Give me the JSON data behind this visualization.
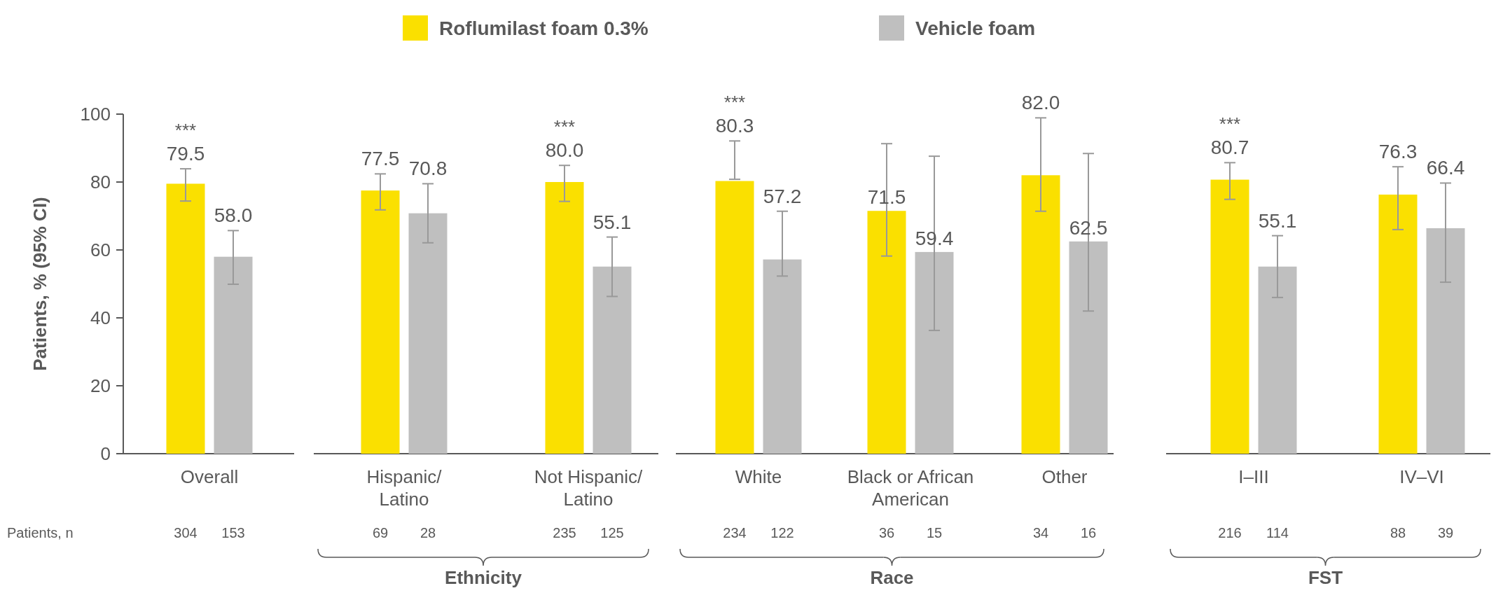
{
  "chart_data": {
    "type": "bar",
    "ylabel": "Patients, % (95% CI)",
    "categories": [
      "Overall",
      "Hispanic/\nLatino",
      "Not Hispanic/\nLatino",
      "White",
      "Black or African\nAmerican",
      "Other",
      "I–III",
      "IV–VI"
    ],
    "series": [
      {
        "name": "Roflumilast foam 0.3%",
        "color": "#fae000",
        "values": [
          79.5,
          77.5,
          80.0,
          80.3,
          71.5,
          82.0,
          80.7,
          76.3
        ],
        "value_labels": [
          "79.5",
          "77.5",
          "80.0",
          "80.3",
          "71.5",
          "82.0",
          "80.7",
          "76.3"
        ],
        "errors": [
          [
            74.4,
            83.9
          ],
          [
            71.8,
            82.4
          ],
          [
            74.3,
            84.9
          ],
          [
            80.8,
            92.1
          ],
          [
            58.2,
            91.3
          ],
          [
            71.4,
            98.9
          ],
          [
            74.9,
            85.7
          ],
          [
            66.0,
            84.5
          ]
        ]
      },
      {
        "name": "Vehicle foam",
        "color": "#bfbfbf",
        "values": [
          58.0,
          70.8,
          55.1,
          57.2,
          59.4,
          62.5,
          55.1,
          66.4
        ],
        "value_labels": [
          "58.0",
          "70.8",
          "55.1",
          "57.2",
          "59.4",
          "62.5",
          "55.1",
          "66.4"
        ],
        "errors": [
          [
            49.9,
            65.7
          ],
          [
            62.1,
            79.5
          ],
          [
            46.3,
            63.8
          ],
          [
            52.3,
            71.4
          ],
          [
            36.3,
            87.6
          ],
          [
            42.0,
            88.4
          ],
          [
            46.0,
            64.2
          ],
          [
            50.5,
            79.7
          ]
        ]
      }
    ],
    "ylim": [
      0,
      100
    ],
    "yticks": [
      0,
      20,
      40,
      60,
      80,
      100
    ],
    "legend": "top",
    "annotations": [
      "***",
      "***",
      "***",
      "***",
      "Patients, n",
      "304",
      "153",
      "69",
      "28",
      "235",
      "125",
      "234",
      "122",
      "36",
      "15",
      "34",
      "16",
      "216",
      "114",
      "88",
      "39",
      "Ethnicity",
      "Race",
      "FST"
    ]
  }
}
